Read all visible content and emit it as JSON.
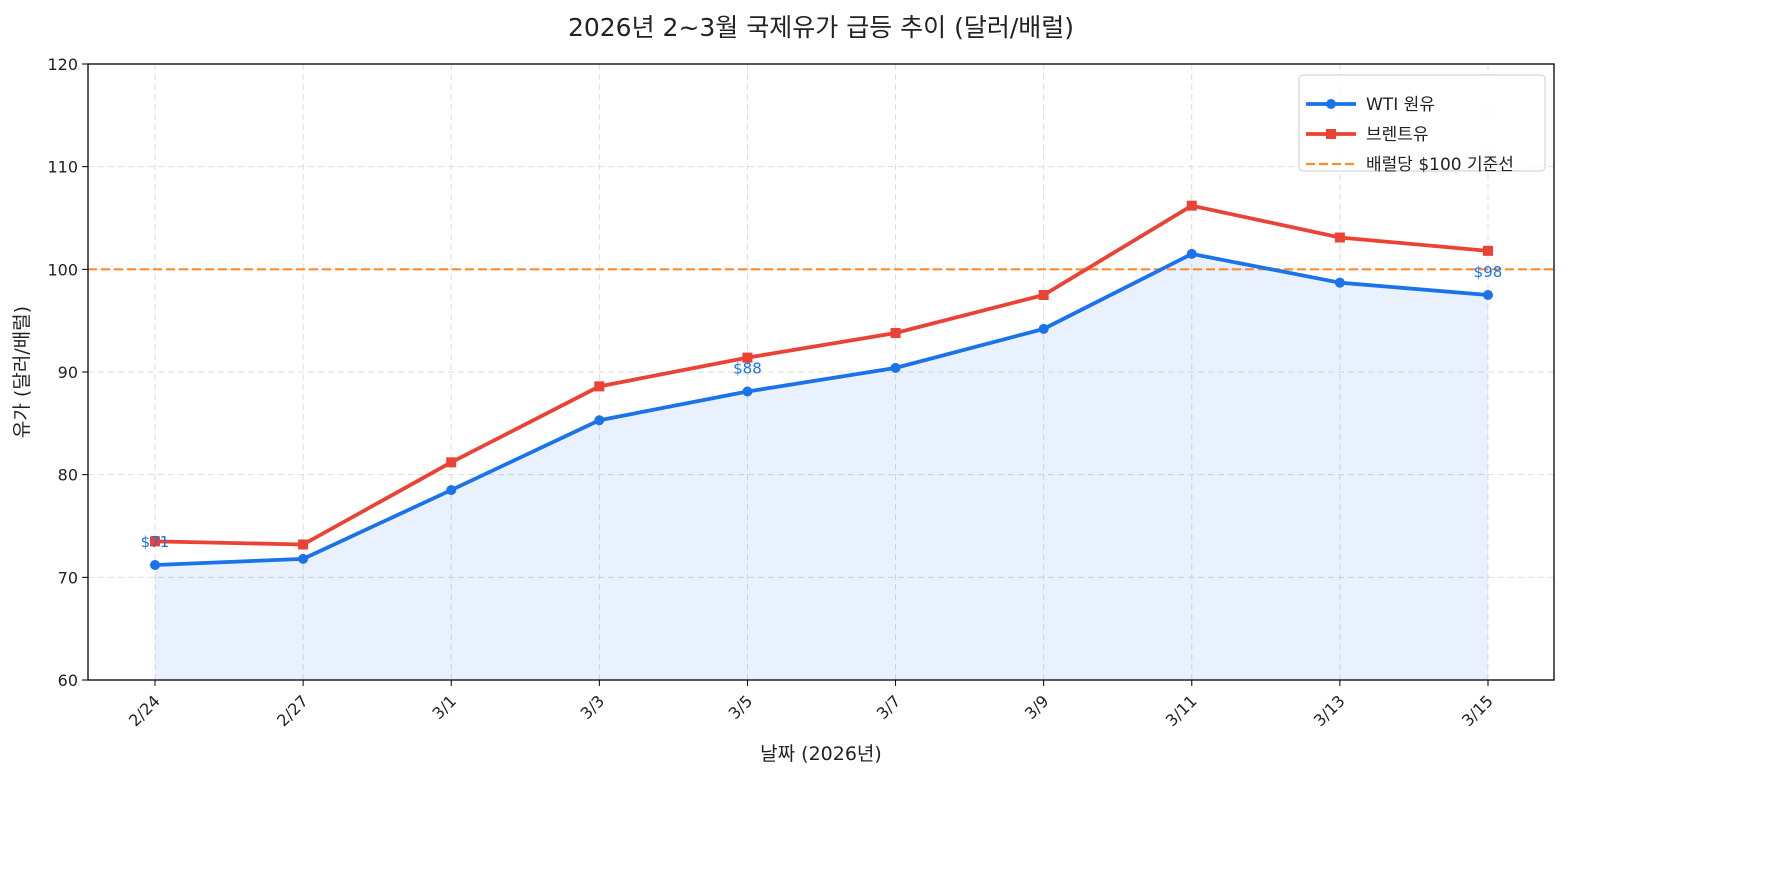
{
  "chart_data": {
    "type": "line",
    "title": "2026년 2~3월 국제유가 급등 추이 (달러/배럴)",
    "xlabel": "날짜 (2026년)",
    "ylabel": "유가 (달러/배럴)",
    "categories": [
      "2/24",
      "2/27",
      "3/1",
      "3/3",
      "3/5",
      "3/7",
      "3/9",
      "3/11",
      "3/13",
      "3/15"
    ],
    "ylim": [
      60,
      120
    ],
    "yticks": [
      60,
      70,
      80,
      90,
      100,
      110,
      120
    ],
    "grid": true,
    "legend_position": "top-right",
    "series": [
      {
        "name": "WTI 원유",
        "color": "#1a73e8",
        "marker": "circle",
        "fill_below": true,
        "values": [
          71.2,
          71.8,
          78.5,
          85.3,
          88.1,
          90.4,
          94.2,
          101.5,
          98.7,
          97.5
        ]
      },
      {
        "name": "브렌트유",
        "color": "#ea4335",
        "marker": "square",
        "values": [
          73.5,
          73.2,
          81.2,
          88.6,
          91.4,
          93.8,
          97.5,
          106.2,
          103.1,
          101.8
        ]
      }
    ],
    "reference_line": {
      "name": "배럴당 $100 기준선",
      "value": 100,
      "color": "#ff8c2a",
      "style": "dashed"
    },
    "annotations": [
      {
        "category": "2/24",
        "text": "$71"
      },
      {
        "category": "3/5",
        "text": "$88"
      },
      {
        "category": "3/15",
        "text": "$98"
      }
    ]
  }
}
